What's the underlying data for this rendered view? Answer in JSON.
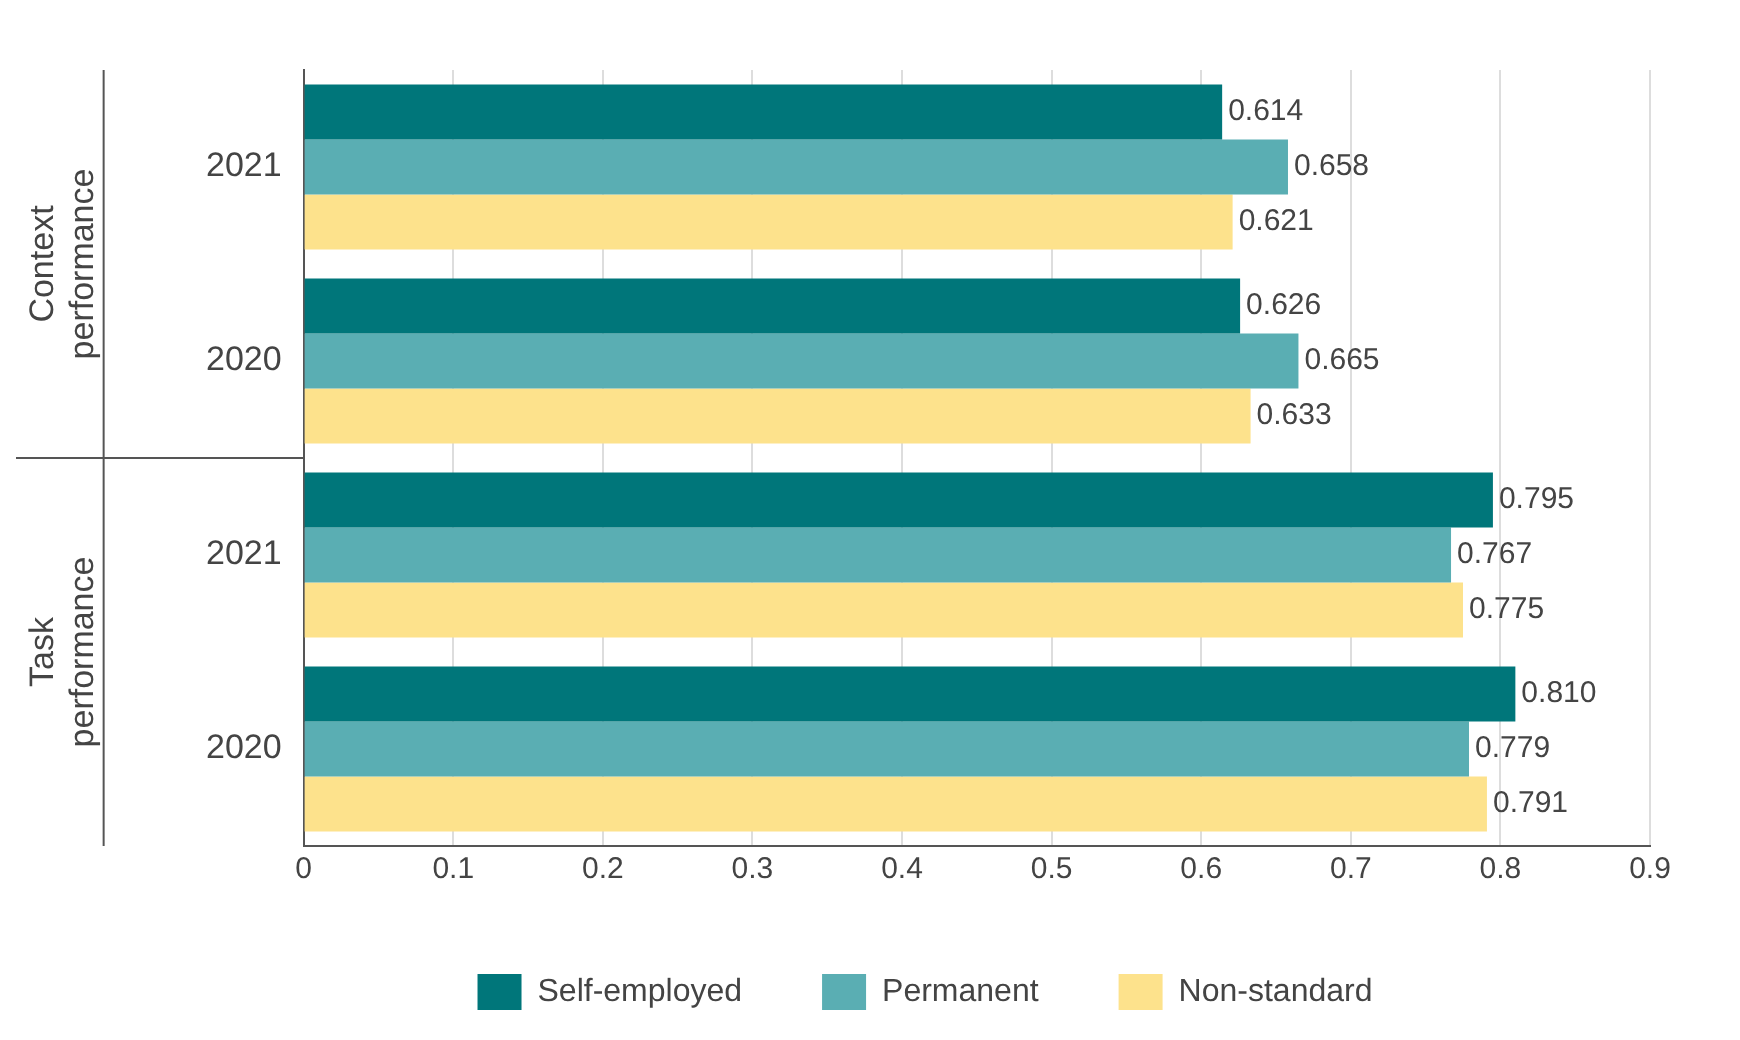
{
  "chart_data": {
    "type": "bar",
    "orientation": "horizontal",
    "categories": [
      "2021",
      "2020",
      "2021",
      "2020"
    ],
    "series": [
      {
        "name": "Self-employed",
        "color": "#00767a",
        "values": [
          0.614,
          0.626,
          0.795,
          0.81
        ],
        "value_labels": [
          "0.614",
          "0.626",
          "0.795",
          "0.810"
        ]
      },
      {
        "name": "Permanent",
        "color": "#5aaeb3",
        "values": [
          0.658,
          0.665,
          0.767,
          0.779
        ],
        "value_labels": [
          "0.658",
          "0.665",
          "0.767",
          "0.779"
        ]
      },
      {
        "name": "Non-standard",
        "color": "#fde28c",
        "values": [
          0.621,
          0.633,
          0.775,
          0.791
        ],
        "value_labels": [
          "0.621",
          "0.633",
          "0.775",
          "0.791"
        ]
      }
    ],
    "xlim": [
      0,
      0.9
    ],
    "xticks": [
      0,
      0.1,
      0.2,
      0.3,
      0.4,
      0.5,
      0.6,
      0.7,
      0.8,
      0.9
    ],
    "grid": "x",
    "legend": "bottom",
    "annotations": [
      "Context performance",
      "Task performance"
    ]
  }
}
